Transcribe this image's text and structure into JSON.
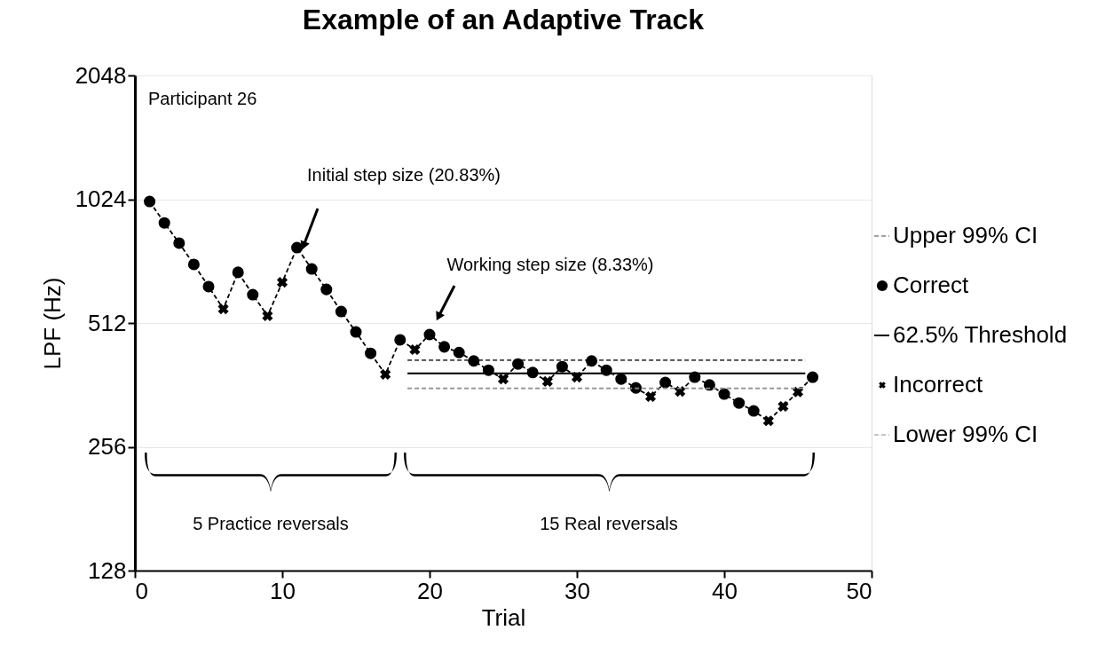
{
  "chart_data": {
    "type": "line",
    "title": "Example of an Adaptive Track",
    "xlabel": "Trial",
    "ylabel": "LPF (Hz)",
    "xlim": [
      0,
      50
    ],
    "xticks": [
      0,
      10,
      20,
      30,
      40,
      50
    ],
    "ylim": [
      128,
      2048
    ],
    "yticks": [
      128,
      256,
      512,
      1024,
      2048
    ],
    "log": "y",
    "grid": "y",
    "legend": "right",
    "series": [
      {
        "color": "#000000",
        "line_style": "dashed",
        "marker": "none",
        "x": [
          1,
          2,
          3,
          4,
          5,
          6,
          7,
          8,
          9,
          10,
          11,
          12,
          13,
          14,
          15,
          16,
          17,
          18,
          19,
          20,
          21,
          22,
          23,
          24,
          25,
          26,
          27,
          28,
          29,
          30,
          31,
          32,
          33,
          34,
          35,
          36,
          37,
          38,
          39,
          40,
          41,
          42,
          43,
          44,
          45,
          46
        ],
        "values": [
          1011,
          897,
          801,
          711,
          628,
          554,
          680,
          600,
          533,
          643,
          781,
          693,
          618,
          546,
          487,
          432,
          384,
          466,
          441,
          480,
          448,
          434,
          414,
          393,
          374,
          407,
          388,
          369,
          401,
          378,
          414,
          393,
          374,
          356,
          339,
          367,
          349,
          378,
          362,
          344,
          327,
          313,
          296,
          321,
          348,
          378
        ]
      },
      {
        "name": "Upper 99% CI",
        "type": "line",
        "color": "#404040",
        "line_style": "dashed",
        "marker": "none",
        "x": [
          18.5,
          45.5
        ],
        "values": [
          416,
          416
        ]
      },
      {
        "name": "Correct",
        "type": "scatter",
        "color": "#000000",
        "marker": "circle",
        "x": [
          1,
          2,
          3,
          4,
          5,
          7,
          8,
          11,
          12,
          13,
          14,
          15,
          16,
          18,
          20,
          21,
          22,
          23,
          24,
          26,
          27,
          29,
          31,
          32,
          33,
          34,
          36,
          38,
          39,
          40,
          41,
          42,
          46
        ],
        "values": [
          1011,
          897,
          801,
          711,
          628,
          680,
          600,
          781,
          693,
          618,
          546,
          487,
          432,
          466,
          480,
          448,
          434,
          414,
          393,
          407,
          388,
          401,
          414,
          393,
          374,
          356,
          367,
          378,
          362,
          344,
          327,
          313,
          378
        ]
      },
      {
        "name": "62.5% Threshold",
        "type": "line",
        "color": "#000000",
        "line_style": "solid",
        "marker": "none",
        "x": [
          18.5,
          45.5
        ],
        "values": [
          386,
          386
        ]
      },
      {
        "name": "Incorrect",
        "type": "scatter",
        "color": "#000000",
        "marker": "cross",
        "x": [
          6,
          9,
          10,
          17,
          19,
          25,
          28,
          30,
          35,
          37,
          43,
          44,
          45
        ],
        "values": [
          554,
          533,
          643,
          384,
          441,
          374,
          369,
          378,
          339,
          349,
          296,
          321,
          348
        ]
      },
      {
        "name": "Lower 99% CI",
        "type": "line",
        "color": "#8c8c8c",
        "line_style": "dashed",
        "marker": "none",
        "x": [
          18.5,
          45.5
        ],
        "values": [
          355,
          355
        ]
      }
    ],
    "annotations": [
      "Participant 26",
      "Initial step size (20.83%)",
      "Working step size (8.33%)",
      "5 Practice reversals",
      "15 Real reversals"
    ]
  }
}
